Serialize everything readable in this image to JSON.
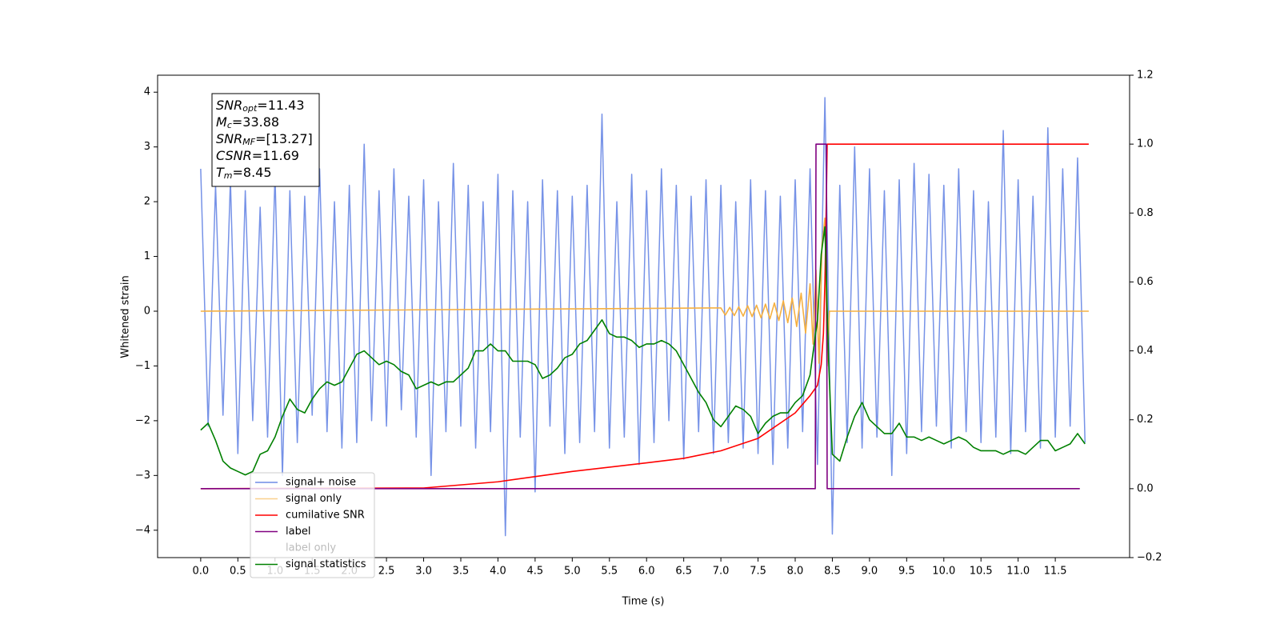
{
  "chart_data": {
    "type": "line",
    "xlabel": "Time (s)",
    "ylabel": "Whitened strain",
    "xlim": [
      -0.58,
      12.5
    ],
    "ylim": [
      -4.5,
      4.31
    ],
    "y2lim": [
      -0.2,
      1.2
    ],
    "xticks": [
      {
        "value": 0,
        "label": "0.0"
      },
      0.5,
      {
        "value": 1,
        "label": "1.0"
      },
      1.5,
      {
        "value": 2,
        "label": "2.0"
      },
      2.5,
      {
        "value": 3,
        "label": "3.0"
      },
      3.5,
      {
        "value": 4,
        "label": "4.0"
      },
      4.5,
      {
        "value": 5,
        "label": "5.0"
      },
      5.5,
      {
        "value": 6,
        "label": "6.0"
      },
      6.5,
      {
        "value": 7,
        "label": "7.0"
      },
      7.5,
      {
        "value": 8,
        "label": "8.0"
      },
      8.5,
      {
        "value": 9,
        "label": "9.0"
      },
      9.5,
      {
        "value": 10,
        "label": "10.0"
      },
      10.5,
      {
        "value": 11,
        "label": "11.0"
      },
      11.5
    ],
    "yticks": [
      {
        "value": -4,
        "label": "−4"
      },
      {
        "value": -3,
        "label": "−3"
      },
      {
        "value": -2,
        "label": "−2"
      },
      {
        "value": -1,
        "label": "−1"
      },
      0,
      1,
      2,
      3,
      4
    ],
    "y2ticks": [
      {
        "value": -0.2,
        "label": "−0.2"
      },
      {
        "value": 0,
        "label": "0.0"
      },
      0.2,
      0.4,
      0.6,
      0.8,
      {
        "value": 1,
        "label": "1.0"
      },
      1.2
    ],
    "legend": "lower left",
    "annotation_lines": [
      {
        "symbol": "SNR",
        "sub": "opt",
        "text": "=11.43"
      },
      {
        "symbol": "M",
        "sub": "c",
        "text": "=33.88"
      },
      {
        "symbol": "SNR",
        "sub": "MF",
        "text": "=[13.27]"
      },
      {
        "symbol": "CSNR",
        "text": "=11.69"
      },
      {
        "symbol": "T",
        "sub": "m",
        "text": "=8.45"
      }
    ],
    "series": [
      {
        "name": "signal+ noise",
        "color": "#6f8ce6",
        "axis": "y",
        "x": [
          0,
          0.1,
          0.2,
          0.3,
          0.4,
          0.5,
          0.6,
          0.7,
          0.8,
          0.9,
          1,
          1.1,
          1.2,
          1.3,
          1.4,
          1.5,
          1.6,
          1.7,
          1.8,
          1.9,
          2,
          2.1,
          2.2,
          2.3,
          2.4,
          2.5,
          2.6,
          2.7,
          2.8,
          2.9,
          3,
          3.1,
          3.2,
          3.3,
          3.4,
          3.5,
          3.6,
          3.7,
          3.8,
          3.9,
          4,
          4.1,
          4.2,
          4.3,
          4.4,
          4.5,
          4.6,
          4.7,
          4.8,
          4.9,
          5,
          5.1,
          5.2,
          5.3,
          5.4,
          5.5,
          5.6,
          5.7,
          5.8,
          5.9,
          6,
          6.1,
          6.2,
          6.3,
          6.4,
          6.5,
          6.6,
          6.7,
          6.8,
          6.9,
          7,
          7.1,
          7.2,
          7.3,
          7.4,
          7.5,
          7.6,
          7.7,
          7.8,
          7.9,
          8,
          8.1,
          8.2,
          8.3,
          8.4,
          8.5,
          8.6,
          8.7,
          8.8,
          8.9,
          9,
          9.1,
          9.2,
          9.3,
          9.4,
          9.5,
          9.6,
          9.7,
          9.8,
          9.9,
          10,
          10.1,
          10.2,
          10.3,
          10.4,
          10.5,
          10.6,
          10.7,
          10.8,
          10.9,
          11,
          11.1,
          11.2,
          11.3,
          11.4,
          11.5,
          11.6,
          11.7,
          11.8,
          11.9
        ],
        "values": [
          2.6,
          -2.1,
          2.3,
          -1.9,
          2.4,
          -2.6,
          2.2,
          -2.0,
          1.9,
          -2.3,
          2.5,
          -3.0,
          2.2,
          -2.4,
          2.1,
          -1.9,
          2.6,
          -2.2,
          2.0,
          -2.5,
          2.3,
          -2.4,
          3.05,
          -2.0,
          2.2,
          -2.1,
          2.6,
          -1.8,
          2.1,
          -2.3,
          2.4,
          -3.0,
          2.0,
          -2.2,
          2.7,
          -2.1,
          2.3,
          -2.5,
          2.0,
          -2.2,
          2.5,
          -4.1,
          2.2,
          -2.3,
          2.0,
          -3.3,
          2.4,
          -2.1,
          2.2,
          -2.6,
          2.1,
          -2.4,
          2.3,
          -2.2,
          3.6,
          -2.5,
          2.0,
          -2.3,
          2.5,
          -2.8,
          2.2,
          -2.4,
          2.6,
          -2.0,
          2.3,
          -2.7,
          2.1,
          -2.2,
          2.4,
          -2.6,
          2.3,
          -2.4,
          2.0,
          -2.5,
          2.4,
          -2.6,
          2.2,
          -2.8,
          2.1,
          -2.5,
          2.4,
          -2.2,
          2.6,
          -2.8,
          3.9,
          -4.07,
          2.3,
          -2.4,
          3.0,
          -2.5,
          2.6,
          -2.3,
          2.2,
          -3.0,
          2.4,
          -2.6,
          2.7,
          -2.2,
          2.5,
          -2.1,
          2.3,
          -2.5,
          2.6,
          -2.2,
          2.2,
          -2.4,
          2.0,
          -2.3,
          3.3,
          -2.6,
          2.4,
          -2.2,
          2.1,
          -2.5,
          3.35,
          -2.3,
          2.6,
          -2.1,
          2.8,
          -2.4
        ]
      },
      {
        "name": "signal only",
        "color": "#f5b041",
        "axis": "y",
        "x": [
          0,
          7.0,
          7.06,
          7.12,
          7.18,
          7.24,
          7.3,
          7.36,
          7.42,
          7.48,
          7.54,
          7.6,
          7.66,
          7.72,
          7.78,
          7.84,
          7.9,
          7.96,
          8.02,
          8.08,
          8.14,
          8.2,
          8.24,
          8.28,
          8.32,
          8.36,
          8.4,
          8.43,
          8.46,
          11.95
        ],
        "values": [
          0,
          0.06,
          -0.07,
          0.07,
          -0.08,
          0.08,
          -0.09,
          0.1,
          -0.1,
          0.11,
          -0.12,
          0.13,
          -0.14,
          0.15,
          -0.17,
          0.19,
          -0.21,
          0.24,
          -0.28,
          0.33,
          -0.4,
          0.5,
          -0.6,
          0.75,
          -0.95,
          1.2,
          1.7,
          -1.0,
          0,
          0
        ]
      },
      {
        "name": "cumilative SNR",
        "color": "#ff0000",
        "axis": "y2",
        "x": [
          0,
          3,
          4,
          5,
          6,
          6.5,
          7,
          7.5,
          8,
          8.2,
          8.3,
          8.35,
          8.38,
          8.4,
          8.42,
          8.43,
          11.95
        ],
        "values": [
          0,
          0.002,
          0.02,
          0.05,
          0.075,
          0.088,
          0.11,
          0.146,
          0.22,
          0.27,
          0.3,
          0.36,
          0.45,
          0.6,
          0.85,
          1.0,
          1.0
        ]
      },
      {
        "name": "label",
        "color": "#800080",
        "axis": "y2",
        "x": [
          0,
          8.27,
          8.28,
          8.42,
          8.43,
          11.83
        ],
        "values": [
          0,
          0,
          1,
          1,
          0,
          0
        ]
      },
      {
        "name": "label only",
        "color": "none",
        "axis": "y2",
        "x": [],
        "values": []
      },
      {
        "name": "signal statistics",
        "color": "#008000",
        "axis": "y2",
        "x": [
          0,
          0.1,
          0.2,
          0.3,
          0.4,
          0.5,
          0.6,
          0.7,
          0.8,
          0.9,
          1,
          1.1,
          1.2,
          1.3,
          1.4,
          1.5,
          1.6,
          1.7,
          1.8,
          1.9,
          2,
          2.1,
          2.2,
          2.3,
          2.4,
          2.5,
          2.6,
          2.7,
          2.8,
          2.9,
          3,
          3.1,
          3.2,
          3.3,
          3.4,
          3.5,
          3.6,
          3.7,
          3.8,
          3.9,
          4,
          4.1,
          4.2,
          4.3,
          4.4,
          4.5,
          4.6,
          4.7,
          4.8,
          4.9,
          5,
          5.1,
          5.2,
          5.3,
          5.4,
          5.5,
          5.6,
          5.7,
          5.8,
          5.9,
          6,
          6.1,
          6.2,
          6.3,
          6.4,
          6.5,
          6.6,
          6.7,
          6.8,
          6.9,
          7,
          7.1,
          7.2,
          7.3,
          7.4,
          7.5,
          7.6,
          7.7,
          7.8,
          7.9,
          8,
          8.1,
          8.2,
          8.3,
          8.35,
          8.4,
          8.45,
          8.5,
          8.6,
          8.7,
          8.8,
          8.9,
          9,
          9.1,
          9.2,
          9.3,
          9.4,
          9.5,
          9.6,
          9.7,
          9.8,
          9.9,
          10,
          10.1,
          10.2,
          10.3,
          10.4,
          10.5,
          10.6,
          10.7,
          10.8,
          10.9,
          11,
          11.1,
          11.2,
          11.3,
          11.4,
          11.5,
          11.6,
          11.7,
          11.8,
          11.9
        ],
        "values": [
          0.17,
          0.19,
          0.14,
          0.08,
          0.06,
          0.05,
          0.04,
          0.05,
          0.1,
          0.11,
          0.15,
          0.21,
          0.26,
          0.23,
          0.22,
          0.26,
          0.29,
          0.31,
          0.3,
          0.31,
          0.35,
          0.39,
          0.4,
          0.38,
          0.36,
          0.37,
          0.36,
          0.34,
          0.33,
          0.29,
          0.3,
          0.31,
          0.3,
          0.31,
          0.31,
          0.33,
          0.35,
          0.4,
          0.4,
          0.42,
          0.4,
          0.4,
          0.37,
          0.37,
          0.37,
          0.36,
          0.32,
          0.33,
          0.35,
          0.38,
          0.39,
          0.42,
          0.43,
          0.46,
          0.49,
          0.45,
          0.44,
          0.44,
          0.43,
          0.41,
          0.42,
          0.42,
          0.43,
          0.42,
          0.4,
          0.36,
          0.32,
          0.28,
          0.25,
          0.2,
          0.18,
          0.21,
          0.24,
          0.23,
          0.21,
          0.16,
          0.19,
          0.21,
          0.22,
          0.22,
          0.25,
          0.27,
          0.33,
          0.49,
          0.68,
          0.76,
          0.37,
          0.1,
          0.08,
          0.15,
          0.21,
          0.25,
          0.2,
          0.18,
          0.16,
          0.16,
          0.19,
          0.15,
          0.15,
          0.14,
          0.15,
          0.14,
          0.13,
          0.14,
          0.15,
          0.14,
          0.12,
          0.11,
          0.11,
          0.11,
          0.1,
          0.11,
          0.11,
          0.1,
          0.12,
          0.14,
          0.14,
          0.11,
          0.12,
          0.13,
          0.16,
          0.13
        ]
      }
    ]
  }
}
